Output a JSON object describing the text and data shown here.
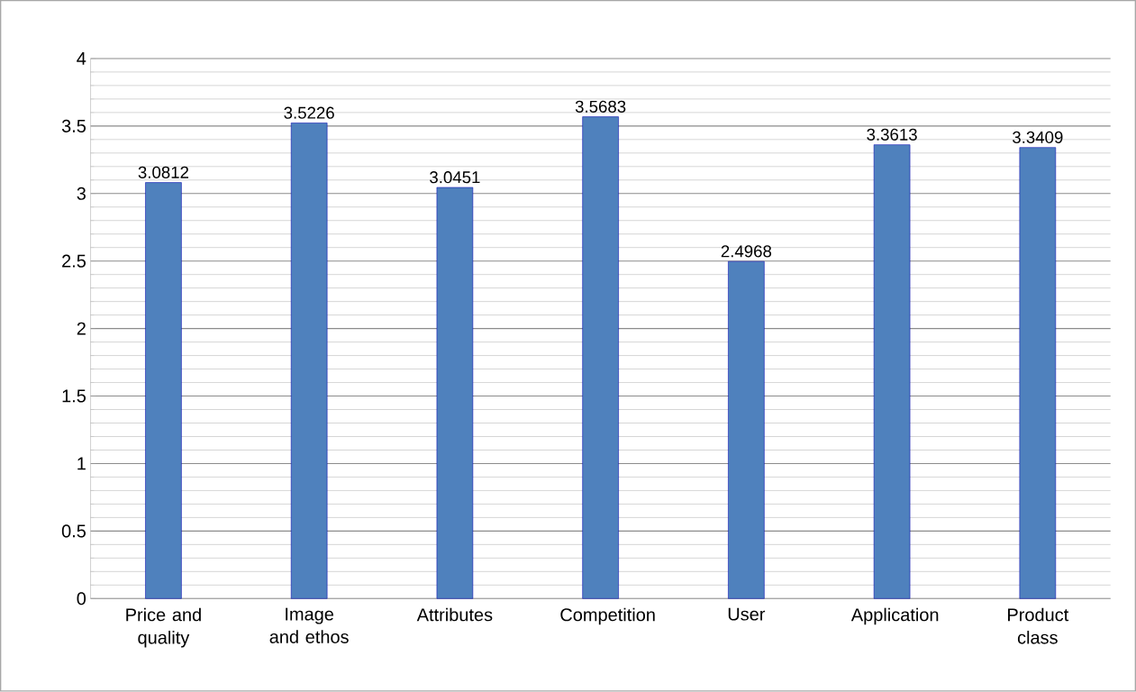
{
  "chart_data": {
    "type": "bar",
    "categories": [
      "Price and quality",
      "Image and ethos",
      "Attributes",
      "Competition",
      "User",
      "Application",
      "Product class"
    ],
    "values": [
      3.0812,
      3.5226,
      3.0451,
      3.5683,
      2.4968,
      3.3613,
      3.3409
    ],
    "color": "#4f81bd",
    "ylim": [
      0,
      4
    ],
    "yticks": [
      0,
      0.5,
      1,
      1.5,
      2,
      2.5,
      3,
      3.5,
      4
    ],
    "grid": "y",
    "data_labels": true
  }
}
